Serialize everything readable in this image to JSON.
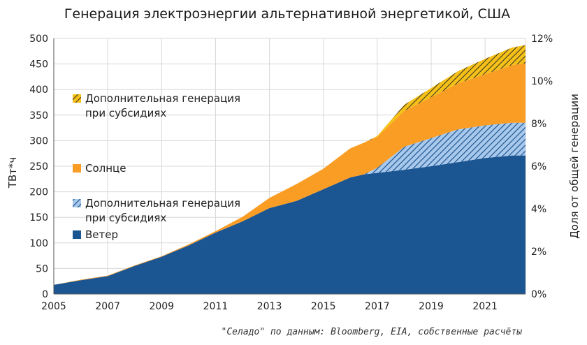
{
  "colors": {
    "wind": "#1b5592",
    "wind_subsidy_fill": "#a9c9ec",
    "wind_subsidy_hatch": "#1b5592",
    "solar": "#f99d25",
    "solar_subsidy_fill": "#f5c018",
    "solar_subsidy_hatch": "#222222",
    "grid": "#d8d8d8"
  },
  "chart_data": {
    "type": "area",
    "title": "Генерация электроэнергии альтернативной энергетикой, США",
    "ylabel": "ТВт*ч",
    "y2label": "Доля от общей генерации",
    "xlabel": "",
    "xlim": [
      2005,
      2022.5
    ],
    "ylim": [
      0,
      500
    ],
    "y2lim": [
      0,
      12
    ],
    "stacked": true,
    "grid": true,
    "x_ticks": [
      "2005",
      "2007",
      "2009",
      "2011",
      "2013",
      "2015",
      "2017",
      "2019",
      "2021"
    ],
    "y_ticks": [
      "0",
      "50",
      "100",
      "150",
      "200",
      "250",
      "300",
      "350",
      "400",
      "450",
      "500"
    ],
    "y2_ticks": [
      "0%",
      "2%",
      "4%",
      "6%",
      "8%",
      "10%",
      "12%"
    ],
    "x": [
      2005,
      2006,
      2007,
      2008,
      2009,
      2010,
      2011,
      2012,
      2013,
      2014,
      2015,
      2016,
      2016.5,
      2017,
      2018,
      2019,
      2020,
      2021,
      2022,
      2022.5
    ],
    "series": [
      {
        "name": "Ветер",
        "key": "wind",
        "values": [
          18,
          27,
          35,
          55,
          73,
          95,
          120,
          142,
          168,
          182,
          205,
          228,
          234,
          237,
          243,
          250,
          258,
          266,
          271,
          271
        ]
      },
      {
        "name": "Дополнительная генерация при субсидиях",
        "key": "wind_subsidy",
        "values": [
          0,
          0,
          0,
          0,
          0,
          0,
          0,
          0,
          0,
          0,
          0,
          0,
          0,
          10,
          45,
          55,
          64,
          64,
          64,
          64
        ]
      },
      {
        "name": "Солнце",
        "key": "solar",
        "values": [
          0,
          1,
          1,
          1,
          1,
          2,
          3,
          9,
          20,
          33,
          40,
          57,
          62,
          60,
          70,
          80,
          90,
          100,
          113,
          116
        ]
      },
      {
        "name": "Дополнительная генерация при субсидиях",
        "key": "solar_subsidy",
        "values": [
          0,
          0,
          0,
          0,
          0,
          0,
          0,
          0,
          0,
          0,
          0,
          0,
          0,
          2,
          12,
          18,
          24,
          30,
          34,
          36
        ]
      }
    ],
    "legend": {
      "position": "left",
      "items": [
        {
          "key": "solar_subsidy",
          "lines": [
            "Дополнительная генерация",
            "при субсидиях"
          ]
        },
        {
          "key": "solar",
          "lines": [
            "Солнце"
          ]
        },
        {
          "key": "wind_subsidy",
          "lines": [
            "Дополнительная генерация",
            "при субсидиях"
          ]
        },
        {
          "key": "wind",
          "lines": [
            "Ветер"
          ]
        }
      ]
    }
  },
  "source": "\"Селадо\" по данным: Bloomberg, EIA, собственные расчёты"
}
